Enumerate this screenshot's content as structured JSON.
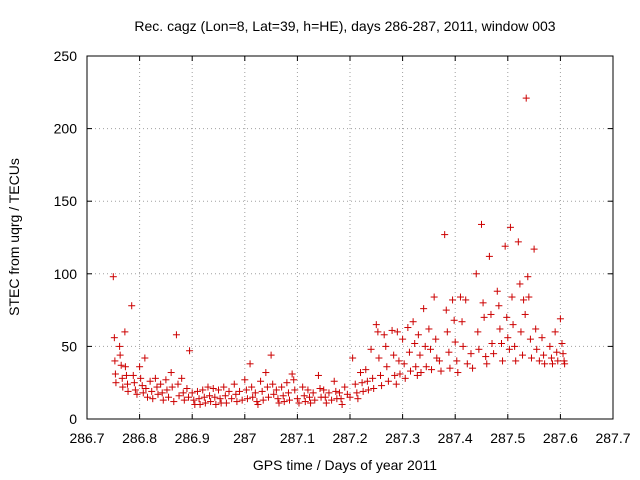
{
  "chart_data": {
    "type": "scatter",
    "title": "Rec. cagz (Lon=8, Lat=39, h=HE), days 286-287, 2011, window 003",
    "xlabel": "GPS time / Days of year 2011",
    "ylabel": "STEC from uqrg / TECUs",
    "xlim": [
      286.7,
      287.7
    ],
    "ylim": [
      0,
      250
    ],
    "xticks": [
      "286.7",
      "286.8",
      "286.9",
      "287",
      "287.1",
      "287.2",
      "287.3",
      "287.4",
      "287.5",
      "287.6",
      "287.7"
    ],
    "yticks": [
      "0",
      "50",
      "100",
      "150",
      "200",
      "250"
    ],
    "grid": true,
    "marker": "+",
    "series": [
      {
        "color": "#cc0000",
        "points": [
          [
            286.75,
            98
          ],
          [
            286.752,
            56
          ],
          [
            286.753,
            40
          ],
          [
            286.754,
            31
          ],
          [
            286.755,
            25
          ],
          [
            286.762,
            50
          ],
          [
            286.763,
            44
          ],
          [
            286.765,
            37
          ],
          [
            286.767,
            28
          ],
          [
            286.768,
            22
          ],
          [
            286.772,
            60
          ],
          [
            286.773,
            36
          ],
          [
            286.775,
            30
          ],
          [
            286.777,
            24
          ],
          [
            286.778,
            19
          ],
          [
            286.785,
            78
          ],
          [
            286.788,
            30
          ],
          [
            286.79,
            25
          ],
          [
            286.792,
            20
          ],
          [
            286.795,
            17
          ],
          [
            286.8,
            36
          ],
          [
            286.802,
            28
          ],
          [
            286.805,
            23
          ],
          [
            286.807,
            18
          ],
          [
            286.81,
            42
          ],
          [
            286.812,
            21
          ],
          [
            286.815,
            15
          ],
          [
            286.82,
            26
          ],
          [
            286.823,
            19
          ],
          [
            286.825,
            14
          ],
          [
            286.83,
            28
          ],
          [
            286.833,
            22
          ],
          [
            286.835,
            17
          ],
          [
            286.84,
            24
          ],
          [
            286.843,
            18
          ],
          [
            286.845,
            13
          ],
          [
            286.85,
            27
          ],
          [
            286.852,
            20
          ],
          [
            286.855,
            15
          ],
          [
            286.86,
            32
          ],
          [
            286.862,
            22
          ],
          [
            286.865,
            12
          ],
          [
            286.87,
            58
          ],
          [
            286.873,
            24
          ],
          [
            286.875,
            16
          ],
          [
            286.88,
            28
          ],
          [
            286.883,
            18
          ],
          [
            286.885,
            13
          ],
          [
            286.89,
            21
          ],
          [
            286.893,
            15
          ],
          [
            286.895,
            47
          ],
          [
            286.9,
            18
          ],
          [
            286.903,
            13
          ],
          [
            286.905,
            10
          ],
          [
            286.91,
            19
          ],
          [
            286.913,
            14
          ],
          [
            286.915,
            10
          ],
          [
            286.92,
            20
          ],
          [
            286.923,
            15
          ],
          [
            286.925,
            11
          ],
          [
            286.93,
            22
          ],
          [
            286.933,
            16
          ],
          [
            286.935,
            12
          ],
          [
            286.94,
            21
          ],
          [
            286.943,
            15
          ],
          [
            286.945,
            10
          ],
          [
            286.95,
            20
          ],
          [
            286.953,
            14
          ],
          [
            286.955,
            11
          ],
          [
            286.96,
            22
          ],
          [
            286.963,
            16
          ],
          [
            286.965,
            11
          ],
          [
            286.97,
            19
          ],
          [
            286.975,
            14
          ],
          [
            286.98,
            24
          ],
          [
            286.983,
            17
          ],
          [
            286.985,
            12
          ],
          [
            286.99,
            19
          ],
          [
            286.995,
            13
          ],
          [
            287.0,
            27
          ],
          [
            287.003,
            20
          ],
          [
            287.005,
            14
          ],
          [
            287.01,
            38
          ],
          [
            287.013,
            22
          ],
          [
            287.015,
            15
          ],
          [
            287.02,
            18
          ],
          [
            287.023,
            12
          ],
          [
            287.025,
            10
          ],
          [
            287.03,
            26
          ],
          [
            287.033,
            19
          ],
          [
            287.035,
            13
          ],
          [
            287.04,
            32
          ],
          [
            287.043,
            22
          ],
          [
            287.045,
            15
          ],
          [
            287.05,
            44
          ],
          [
            287.053,
            24
          ],
          [
            287.055,
            17
          ],
          [
            287.06,
            20
          ],
          [
            287.063,
            14
          ],
          [
            287.065,
            11
          ],
          [
            287.07,
            22
          ],
          [
            287.073,
            16
          ],
          [
            287.075,
            12
          ],
          [
            287.08,
            25
          ],
          [
            287.083,
            18
          ],
          [
            287.085,
            13
          ],
          [
            287.09,
            31
          ],
          [
            287.093,
            27
          ],
          [
            287.095,
            20
          ],
          [
            287.1,
            14
          ],
          [
            287.103,
            11
          ],
          [
            287.11,
            22
          ],
          [
            287.113,
            16
          ],
          [
            287.115,
            12
          ],
          [
            287.12,
            20
          ],
          [
            287.123,
            15
          ],
          [
            287.125,
            11
          ],
          [
            287.13,
            18
          ],
          [
            287.133,
            13
          ],
          [
            287.14,
            30
          ],
          [
            287.143,
            21
          ],
          [
            287.145,
            15
          ],
          [
            287.15,
            20
          ],
          [
            287.153,
            15
          ],
          [
            287.155,
            11
          ],
          [
            287.16,
            18
          ],
          [
            287.165,
            13
          ],
          [
            287.17,
            26
          ],
          [
            287.173,
            19
          ],
          [
            287.175,
            14
          ],
          [
            287.18,
            18
          ],
          [
            287.183,
            14
          ],
          [
            287.185,
            10
          ],
          [
            287.19,
            22
          ],
          [
            287.195,
            17
          ],
          [
            287.2,
            15
          ],
          [
            287.205,
            42
          ],
          [
            287.21,
            24
          ],
          [
            287.213,
            18
          ],
          [
            287.215,
            14
          ],
          [
            287.22,
            32
          ],
          [
            287.223,
            25
          ],
          [
            287.225,
            19
          ],
          [
            287.23,
            34
          ],
          [
            287.233,
            26
          ],
          [
            287.235,
            20
          ],
          [
            287.24,
            48
          ],
          [
            287.243,
            28
          ],
          [
            287.245,
            21
          ],
          [
            287.25,
            65
          ],
          [
            287.253,
            60
          ],
          [
            287.255,
            42
          ],
          [
            287.258,
            30
          ],
          [
            287.26,
            23
          ],
          [
            287.265,
            58
          ],
          [
            287.268,
            50
          ],
          [
            287.27,
            36
          ],
          [
            287.273,
            26
          ],
          [
            287.28,
            61
          ],
          [
            287.283,
            44
          ],
          [
            287.285,
            30
          ],
          [
            287.288,
            24
          ],
          [
            287.29,
            60
          ],
          [
            287.293,
            40
          ],
          [
            287.295,
            31
          ],
          [
            287.3,
            55
          ],
          [
            287.303,
            38
          ],
          [
            287.305,
            28
          ],
          [
            287.31,
            63
          ],
          [
            287.313,
            46
          ],
          [
            287.315,
            33
          ],
          [
            287.32,
            67
          ],
          [
            287.323,
            52
          ],
          [
            287.325,
            36
          ],
          [
            287.328,
            30
          ],
          [
            287.33,
            58
          ],
          [
            287.333,
            44
          ],
          [
            287.335,
            32
          ],
          [
            287.34,
            76
          ],
          [
            287.343,
            50
          ],
          [
            287.345,
            36
          ],
          [
            287.35,
            62
          ],
          [
            287.353,
            48
          ],
          [
            287.355,
            34
          ],
          [
            287.36,
            84
          ],
          [
            287.363,
            55
          ],
          [
            287.365,
            42
          ],
          [
            287.37,
            40
          ],
          [
            287.373,
            33
          ],
          [
            287.38,
            127
          ],
          [
            287.383,
            75
          ],
          [
            287.385,
            60
          ],
          [
            287.388,
            46
          ],
          [
            287.39,
            35
          ],
          [
            287.395,
            82
          ],
          [
            287.398,
            68
          ],
          [
            287.4,
            53
          ],
          [
            287.403,
            40
          ],
          [
            287.405,
            32
          ],
          [
            287.41,
            84
          ],
          [
            287.413,
            67
          ],
          [
            287.415,
            50
          ],
          [
            287.42,
            82
          ],
          [
            287.423,
            38
          ],
          [
            287.43,
            45
          ],
          [
            287.433,
            35
          ],
          [
            287.44,
            100
          ],
          [
            287.443,
            60
          ],
          [
            287.445,
            48
          ],
          [
            287.45,
            134
          ],
          [
            287.453,
            80
          ],
          [
            287.455,
            70
          ],
          [
            287.458,
            43
          ],
          [
            287.46,
            38
          ],
          [
            287.465,
            112
          ],
          [
            287.468,
            72
          ],
          [
            287.47,
            52
          ],
          [
            287.473,
            45
          ],
          [
            287.48,
            88
          ],
          [
            287.483,
            78
          ],
          [
            287.485,
            62
          ],
          [
            287.488,
            52
          ],
          [
            287.49,
            40
          ],
          [
            287.495,
            119
          ],
          [
            287.498,
            70
          ],
          [
            287.5,
            56
          ],
          [
            287.503,
            48
          ],
          [
            287.505,
            132
          ],
          [
            287.508,
            84
          ],
          [
            287.51,
            65
          ],
          [
            287.513,
            50
          ],
          [
            287.515,
            40
          ],
          [
            287.52,
            122
          ],
          [
            287.523,
            93
          ],
          [
            287.525,
            60
          ],
          [
            287.528,
            44
          ],
          [
            287.53,
            82
          ],
          [
            287.533,
            72
          ],
          [
            287.535,
            221
          ],
          [
            287.538,
            98
          ],
          [
            287.54,
            84
          ],
          [
            287.543,
            55
          ],
          [
            287.545,
            42
          ],
          [
            287.55,
            117
          ],
          [
            287.553,
            62
          ],
          [
            287.555,
            48
          ],
          [
            287.56,
            40
          ],
          [
            287.565,
            56
          ],
          [
            287.568,
            44
          ],
          [
            287.57,
            38
          ],
          [
            287.58,
            50
          ],
          [
            287.583,
            42
          ],
          [
            287.585,
            38
          ],
          [
            287.59,
            60
          ],
          [
            287.593,
            46
          ],
          [
            287.595,
            40
          ],
          [
            287.6,
            69
          ],
          [
            287.603,
            52
          ],
          [
            287.605,
            45
          ],
          [
            287.607,
            40
          ],
          [
            287.608,
            38
          ]
        ]
      }
    ]
  }
}
